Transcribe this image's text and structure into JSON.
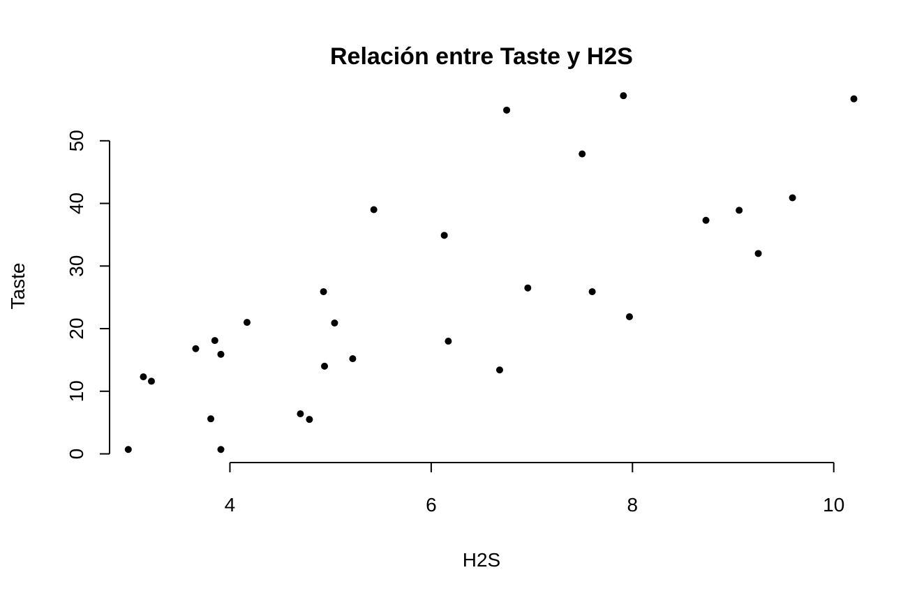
{
  "chart_data": {
    "type": "scatter",
    "title": "Relación entre Taste y H2S",
    "xlabel": "H2S",
    "ylabel": "Taste",
    "xlim": [
      2.7,
      10.3
    ],
    "ylim": [
      -1.5,
      58
    ],
    "x_ticks": [
      4,
      6,
      8,
      10
    ],
    "x_tick_labels": [
      "4",
      "6",
      "8",
      "10"
    ],
    "y_ticks": [
      0,
      10,
      20,
      30,
      40,
      50
    ],
    "y_tick_labels": [
      "0",
      "10",
      "20",
      "30",
      "40",
      "50"
    ],
    "grid": false,
    "point_color": "#000000",
    "points": [
      {
        "x": 2.99,
        "y": 0.7
      },
      {
        "x": 3.14,
        "y": 12.3
      },
      {
        "x": 3.22,
        "y": 11.6
      },
      {
        "x": 3.66,
        "y": 16.8
      },
      {
        "x": 3.81,
        "y": 5.6
      },
      {
        "x": 3.85,
        "y": 18.1
      },
      {
        "x": 3.91,
        "y": 15.9
      },
      {
        "x": 3.91,
        "y": 0.7
      },
      {
        "x": 4.17,
        "y": 21.0
      },
      {
        "x": 4.7,
        "y": 6.4
      },
      {
        "x": 4.79,
        "y": 5.5
      },
      {
        "x": 4.93,
        "y": 25.9
      },
      {
        "x": 4.94,
        "y": 14.0
      },
      {
        "x": 5.04,
        "y": 20.9
      },
      {
        "x": 5.22,
        "y": 15.2
      },
      {
        "x": 5.43,
        "y": 39.0
      },
      {
        "x": 6.13,
        "y": 34.9
      },
      {
        "x": 6.17,
        "y": 18.0
      },
      {
        "x": 6.68,
        "y": 13.4
      },
      {
        "x": 6.75,
        "y": 54.9
      },
      {
        "x": 6.96,
        "y": 26.5
      },
      {
        "x": 7.5,
        "y": 47.9
      },
      {
        "x": 7.6,
        "y": 25.9
      },
      {
        "x": 7.91,
        "y": 57.2
      },
      {
        "x": 7.97,
        "y": 21.9
      },
      {
        "x": 8.73,
        "y": 37.3
      },
      {
        "x": 9.06,
        "y": 38.9
      },
      {
        "x": 9.25,
        "y": 32.0
      },
      {
        "x": 9.59,
        "y": 40.9
      },
      {
        "x": 10.2,
        "y": 56.7
      }
    ]
  }
}
